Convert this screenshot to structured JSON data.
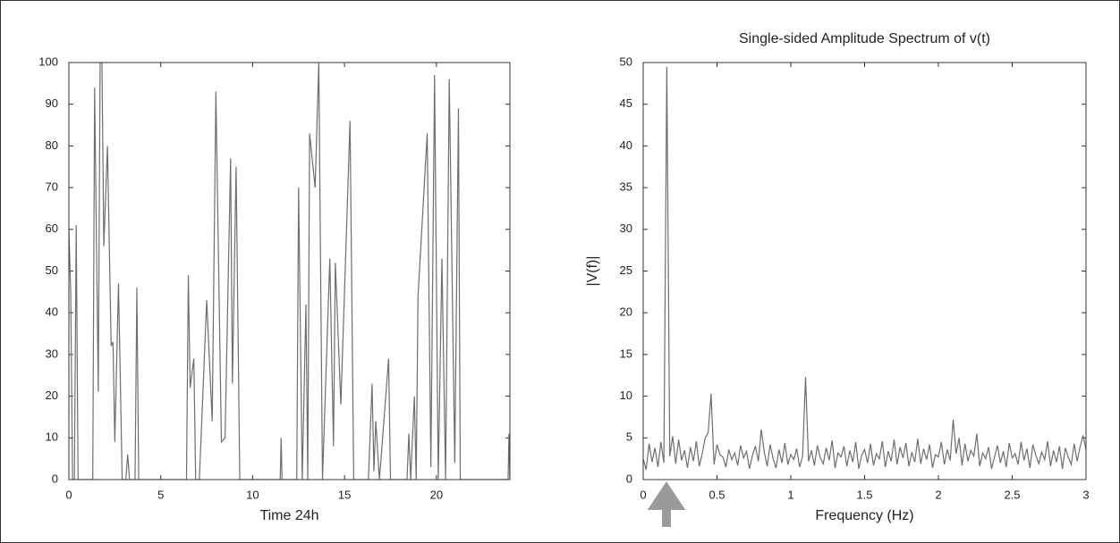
{
  "chart_data": [
    {
      "type": "line",
      "xlabel": "Time 24h",
      "color": "#6e6e6e",
      "x": [
        0,
        0.1,
        0.2,
        0.3,
        0.4,
        0.5,
        1.3,
        1.4,
        1.6,
        1.7,
        1.8,
        1.9,
        2.1,
        2.3,
        2.4,
        2.5,
        2.7,
        2.9,
        3.1,
        3.2,
        3.3,
        3.6,
        3.7,
        3.8,
        6.4,
        6.5,
        6.6,
        6.8,
        6.9,
        7.1,
        7.5,
        7.8,
        8.0,
        8.3,
        8.5,
        8.8,
        8.9,
        9.1,
        9.3,
        11.5,
        11.55,
        11.6,
        12.4,
        12.5,
        12.7,
        12.9,
        13.0,
        13.1,
        13.4,
        13.6,
        13.8,
        14.2,
        14.4,
        14.5,
        14.8,
        15.3,
        15.5,
        16.3,
        16.5,
        16.6,
        16.7,
        16.9,
        17.4,
        17.5,
        18.4,
        18.5,
        18.6,
        18.8,
        18.9,
        19.0,
        19.5,
        19.7,
        19.9,
        20.1,
        20.3,
        20.5,
        20.7,
        21.0,
        21.2,
        21.3,
        22.0,
        23.9,
        23.95,
        24
      ],
      "values": [
        60,
        45,
        0,
        0,
        61,
        0,
        0,
        94,
        21,
        100,
        100,
        56,
        80,
        32,
        33,
        9,
        47,
        0,
        0,
        6,
        0,
        0,
        46,
        0,
        0,
        49,
        22,
        29,
        0,
        0,
        43,
        14,
        93,
        9,
        10,
        77,
        23,
        75,
        0,
        0,
        10,
        0,
        0,
        70,
        0,
        42,
        0,
        83,
        70,
        100,
        0,
        53,
        8,
        52,
        18,
        86,
        0,
        0,
        23,
        2,
        14,
        0,
        29,
        0,
        0,
        11,
        0,
        20,
        0,
        44,
        83,
        3,
        97,
        0,
        53,
        0,
        96,
        4,
        89,
        0,
        0,
        0,
        11,
        0
      ],
      "xlim": [
        0,
        24
      ],
      "xticks": [
        0,
        5,
        10,
        15,
        20
      ],
      "ylim": [
        0,
        100
      ],
      "yticks": [
        0,
        10,
        20,
        30,
        40,
        50,
        60,
        70,
        80,
        90,
        100
      ]
    },
    {
      "type": "line",
      "title": "Single-sided Amplitude Spectrum of v(t)",
      "xlabel": "Frequency (Hz)",
      "ylabel": "|V(f)|",
      "color": "#6e6e6e",
      "x": [
        0,
        0.02,
        0.04,
        0.06,
        0.08,
        0.1,
        0.12,
        0.14,
        0.16,
        0.18,
        0.2,
        0.22,
        0.24,
        0.26,
        0.28,
        0.3,
        0.32,
        0.34,
        0.36,
        0.38,
        0.4,
        0.42,
        0.44,
        0.46,
        0.48,
        0.5,
        0.52,
        0.54,
        0.56,
        0.58,
        0.6,
        0.62,
        0.64,
        0.66,
        0.68,
        0.7,
        0.72,
        0.74,
        0.76,
        0.78,
        0.8,
        0.82,
        0.84,
        0.86,
        0.88,
        0.9,
        0.92,
        0.94,
        0.96,
        0.98,
        1,
        1.02,
        1.04,
        1.06,
        1.08,
        1.1,
        1.12,
        1.14,
        1.16,
        1.18,
        1.2,
        1.22,
        1.24,
        1.26,
        1.28,
        1.3,
        1.32,
        1.34,
        1.36,
        1.38,
        1.4,
        1.42,
        1.44,
        1.46,
        1.48,
        1.5,
        1.52,
        1.54,
        1.56,
        1.58,
        1.6,
        1.62,
        1.64,
        1.66,
        1.68,
        1.7,
        1.72,
        1.74,
        1.76,
        1.78,
        1.8,
        1.82,
        1.84,
        1.86,
        1.88,
        1.9,
        1.92,
        1.94,
        1.96,
        1.98,
        2,
        2.02,
        2.04,
        2.06,
        2.08,
        2.1,
        2.12,
        2.14,
        2.16,
        2.18,
        2.2,
        2.22,
        2.24,
        2.26,
        2.28,
        2.3,
        2.32,
        2.34,
        2.36,
        2.38,
        2.4,
        2.42,
        2.44,
        2.46,
        2.48,
        2.5,
        2.52,
        2.54,
        2.56,
        2.58,
        2.6,
        2.62,
        2.64,
        2.66,
        2.68,
        2.7,
        2.72,
        2.74,
        2.76,
        2.78,
        2.8,
        2.82,
        2.84,
        2.86,
        2.88,
        2.9,
        2.92,
        2.94,
        2.96,
        2.98,
        3
      ],
      "values": [
        2.5,
        1.2,
        4.3,
        2.1,
        3.8,
        1.5,
        4.5,
        2.0,
        49.5,
        2.8,
        5.2,
        1.9,
        4.8,
        2.3,
        3.5,
        1.4,
        3.9,
        2.2,
        4.6,
        1.6,
        3.1,
        5.0,
        5.6,
        10.3,
        1.8,
        4.2,
        3.0,
        2.7,
        1.5,
        3.6,
        2.4,
        3.2,
        1.7,
        4.1,
        2.6,
        3.4,
        1.3,
        2.9,
        4.0,
        2.2,
        6.0,
        3.3,
        1.6,
        4.2,
        2.5,
        1.4,
        3.6,
        2.0,
        4.4,
        1.8,
        3.0,
        2.4,
        3.7,
        1.5,
        2.8,
        12.3,
        2.2,
        3.5,
        1.7,
        4.1,
        2.6,
        1.9,
        3.8,
        2.3,
        4.7,
        1.4,
        3.2,
        2.7,
        4.0,
        1.6,
        3.5,
        2.1,
        4.5,
        1.3,
        2.9,
        3.6,
        2.0,
        4.3,
        1.7,
        3.1,
        2.5,
        4.6,
        1.5,
        3.4,
        2.2,
        4.8,
        1.8,
        3.9,
        2.6,
        4.4,
        1.6,
        3.3,
        2.1,
        4.9,
        1.9,
        3.7,
        2.4,
        4.2,
        1.4,
        3.0,
        2.7,
        4.5,
        1.8,
        3.6,
        2.3,
        7.2,
        3.1,
        5.0,
        1.7,
        4.3,
        2.2,
        3.5,
        2.8,
        5.5,
        1.6,
        3.2,
        2.5,
        3.9,
        1.3,
        2.7,
        4.1,
        2.0,
        3.4,
        1.5,
        4.4,
        2.6,
        3.1,
        1.8,
        4.5,
        2.3,
        3.7,
        1.4,
        4.2,
        2.9,
        1.9,
        3.3,
        2.4,
        4.6,
        1.6,
        3.5,
        2.1,
        4.0,
        1.3,
        3.8,
        2.7,
        1.8,
        4.3,
        2.2,
        3.9,
        5.3,
        3.6
      ],
      "xlim": [
        0,
        3
      ],
      "xticks": [
        0,
        0.5,
        1,
        1.5,
        2,
        2.5,
        3
      ],
      "ylim": [
        0,
        50
      ],
      "yticks": [
        0,
        5,
        10,
        15,
        20,
        25,
        30,
        35,
        40,
        45,
        50
      ]
    }
  ]
}
